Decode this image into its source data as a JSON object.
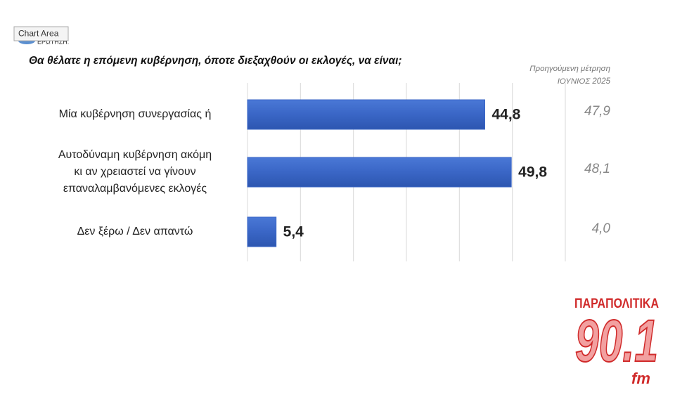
{
  "tooltip": "Chart Area",
  "question_label": "ΕΡΩΤΗΣΗ:",
  "logo": {
    "brand": "ΠΑΡΑΠΟΛΙΤΙΚΑ",
    "frequency": "90.1",
    "band": "fm"
  },
  "chart_data": {
    "type": "bar",
    "orientation": "horizontal",
    "title": "Θα θέλατε η επόμενη κυβέρνηση, όποτε διεξαχθούν οι εκλογές, να είναι;",
    "categories": [
      "Μία κυβέρνηση συνεργασίας ή",
      "Αυτοδύναμη κυβέρνηση ακόμη\nκι αν χρειαστεί να γίνουν\nεπαναλαμβανόμενες εκλογές",
      "Δεν ξέρω / Δεν απαντώ"
    ],
    "values": [
      44.8,
      49.8,
      5.4
    ],
    "value_labels": [
      "44,8",
      "49,8",
      "5,4"
    ],
    "color": "#3a66c6",
    "xlim": [
      0,
      60
    ],
    "xticks": [
      0,
      10,
      20,
      30,
      40,
      50,
      60
    ],
    "grid": true,
    "previous": {
      "title": "Προηγούμενη μέτρηση",
      "subtitle": "ΙΟΥΝΙΟΣ 2025",
      "values": [
        47.9,
        48.1,
        4.0
      ],
      "value_labels": [
        "47,9",
        "48,1",
        "4,0"
      ]
    }
  }
}
